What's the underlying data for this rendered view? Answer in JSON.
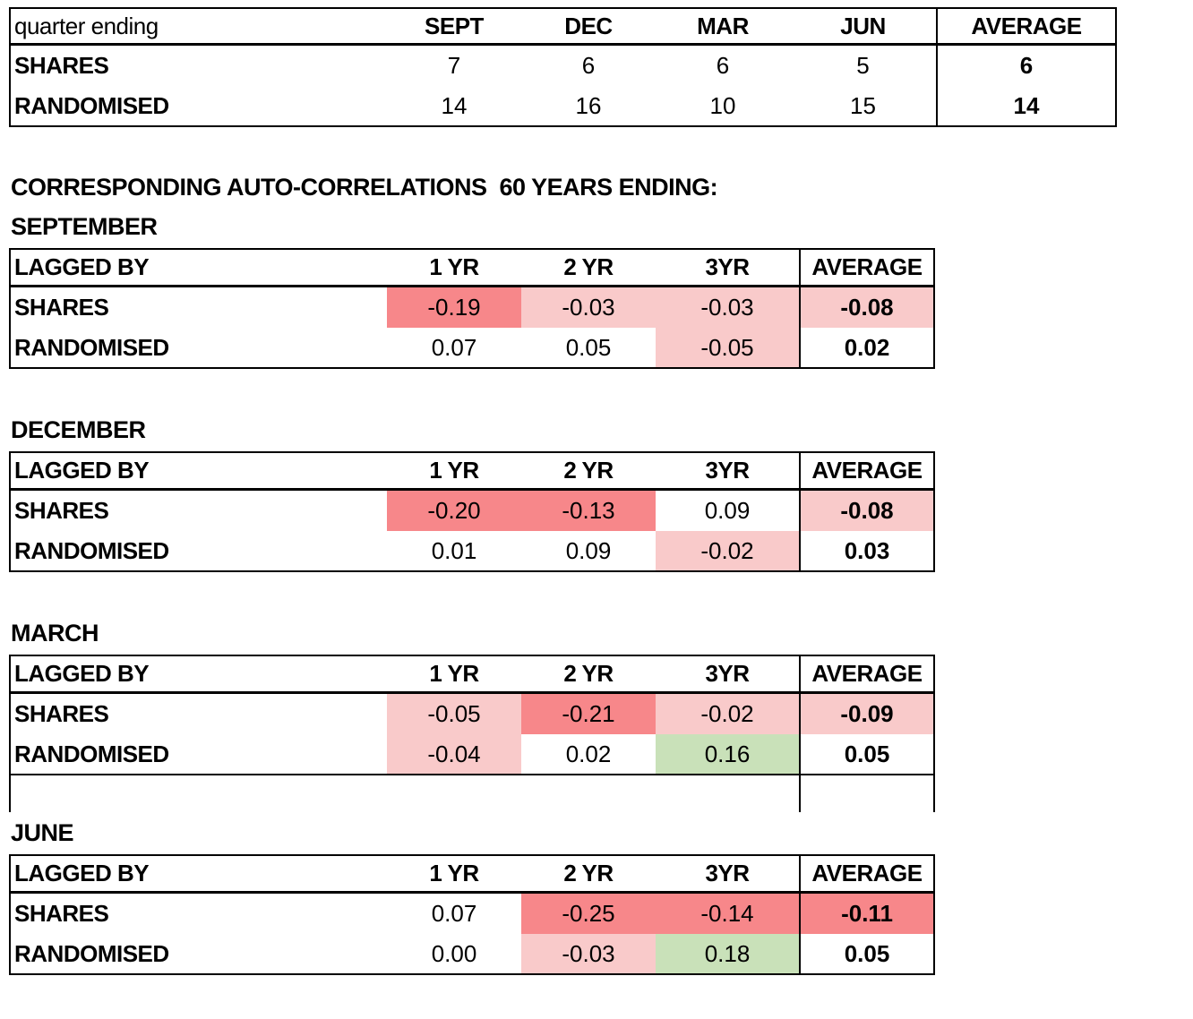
{
  "colors": {
    "red": "#f7878a",
    "pink": "#f9caca",
    "green": "#c9e1b9"
  },
  "quarter_table": {
    "corner_label": "quarter ending",
    "columns": [
      "SEPT",
      "DEC",
      "MAR",
      "JUN"
    ],
    "average_label": "AVERAGE",
    "rows": [
      {
        "label": "SHARES",
        "values": [
          "7",
          "6",
          "6",
          "5"
        ],
        "average": "6"
      },
      {
        "label": "RANDOMISED",
        "values": [
          "14",
          "16",
          "10",
          "15"
        ],
        "average": "14"
      }
    ]
  },
  "section_title": "CORRESPONDING AUTO-CORRELATIONS  60 YEARS ENDING:",
  "lag_header": {
    "corner": "LAGGED BY",
    "cols": [
      "1 YR",
      "2 YR",
      "3YR"
    ],
    "average": "AVERAGE"
  },
  "month_tables": [
    {
      "month": "SEPTEMBER",
      "rows": [
        {
          "label": "SHARES",
          "cells": [
            {
              "v": "-0.19",
              "c": "red"
            },
            {
              "v": "-0.03",
              "c": "pink"
            },
            {
              "v": "-0.03",
              "c": "pink"
            }
          ],
          "avg": {
            "v": "-0.08",
            "c": "pink"
          }
        },
        {
          "label": "RANDOMISED",
          "cells": [
            {
              "v": "0.07",
              "c": "none"
            },
            {
              "v": "0.05",
              "c": "none"
            },
            {
              "v": "-0.05",
              "c": "pink"
            }
          ],
          "avg": {
            "v": "0.02",
            "c": "none"
          }
        }
      ]
    },
    {
      "month": "DECEMBER",
      "rows": [
        {
          "label": "SHARES",
          "cells": [
            {
              "v": "-0.20",
              "c": "red"
            },
            {
              "v": "-0.13",
              "c": "red"
            },
            {
              "v": "0.09",
              "c": "none"
            }
          ],
          "avg": {
            "v": "-0.08",
            "c": "pink"
          }
        },
        {
          "label": "RANDOMISED",
          "cells": [
            {
              "v": "0.01",
              "c": "none"
            },
            {
              "v": "0.09",
              "c": "none"
            },
            {
              "v": "-0.02",
              "c": "pink"
            }
          ],
          "avg": {
            "v": "0.03",
            "c": "none"
          }
        }
      ]
    },
    {
      "month": "MARCH",
      "rows": [
        {
          "label": "SHARES",
          "cells": [
            {
              "v": "-0.05",
              "c": "pink"
            },
            {
              "v": "-0.21",
              "c": "red"
            },
            {
              "v": "-0.02",
              "c": "pink"
            }
          ],
          "avg": {
            "v": "-0.09",
            "c": "pink"
          }
        },
        {
          "label": "RANDOMISED",
          "cells": [
            {
              "v": "-0.04",
              "c": "pink"
            },
            {
              "v": "0.02",
              "c": "none"
            },
            {
              "v": "0.16",
              "c": "green"
            }
          ],
          "avg": {
            "v": "0.05",
            "c": "none"
          }
        }
      ]
    },
    {
      "month": "JUNE",
      "rows": [
        {
          "label": "SHARES",
          "cells": [
            {
              "v": "0.07",
              "c": "none"
            },
            {
              "v": "-0.25",
              "c": "red"
            },
            {
              "v": "-0.14",
              "c": "red"
            }
          ],
          "avg": {
            "v": "-0.11",
            "c": "red"
          }
        },
        {
          "label": "RANDOMISED",
          "cells": [
            {
              "v": "0.00",
              "c": "none"
            },
            {
              "v": "-0.03",
              "c": "pink"
            },
            {
              "v": "0.18",
              "c": "green"
            }
          ],
          "avg": {
            "v": "0.05",
            "c": "none"
          }
        }
      ]
    }
  ]
}
